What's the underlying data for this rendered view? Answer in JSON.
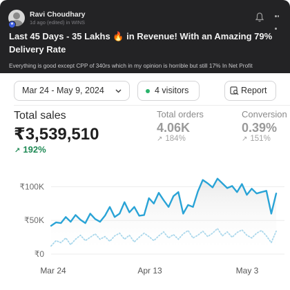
{
  "post": {
    "author": "Ravi Choudhary",
    "meta": "1d ago (edited) in WINS",
    "title_part1": "Last 45 Days - 35 Lakhs",
    "title_emoji": "🔥",
    "title_part2": "in Revenue! With an Amazing 79% Delivery Rate",
    "body": "Everything is good except CPP of 340rs which in my opinion is horrible but still 17% In Net Profit"
  },
  "dashboard": {
    "date_range": "Mar 24 - May 9, 2024",
    "visitors": "4 visitors",
    "report_label": "Report",
    "metrics": {
      "total_sales": {
        "label": "Total sales",
        "value": "₹3,539,510",
        "change": "192%"
      },
      "total_orders": {
        "label": "Total orders",
        "value": "4.06K",
        "change": "184%"
      },
      "conversion": {
        "label": "Conversion",
        "value": "0.39%",
        "change": "151%"
      }
    }
  },
  "colors": {
    "header_bg": "#232325",
    "primary_line": "#29a3d6",
    "compare_line": "#9fd3ea",
    "positive": "#1f8a55",
    "live_dot": "#29b36b"
  },
  "chart_data": {
    "type": "line",
    "x_tick_labels": [
      "Mar 24",
      "Apr 13",
      "May 3"
    ],
    "y_tick_labels": [
      "₹100K",
      "₹50K",
      "₹0"
    ],
    "ylim": [
      0,
      125000
    ],
    "series": [
      {
        "values": [
          42000,
          47000,
          46000,
          55000,
          48000,
          58000,
          51000,
          46000,
          60000,
          52000,
          48000,
          57000,
          70000,
          55000,
          60000,
          77000,
          62000,
          70000,
          57000,
          58000,
          83000,
          75000,
          91000,
          80000,
          70000,
          86000,
          92000,
          60000,
          73000,
          70000,
          93000,
          110000,
          105000,
          99000,
          112000,
          105000,
          98000,
          101000,
          92000,
          104000,
          88000,
          97000,
          90000,
          92000,
          94000,
          60000,
          90000
        ]
      },
      {
        "values": [
          12000,
          20000,
          17000,
          24000,
          14000,
          22000,
          28000,
          20000,
          25000,
          30000,
          22000,
          26000,
          19000,
          27000,
          31000,
          22000,
          28000,
          18000,
          25000,
          31000,
          26000,
          20000,
          27000,
          33000,
          24000,
          29000,
          22000,
          30000,
          35000,
          24000,
          28000,
          34000,
          26000,
          31000,
          38000,
          27000,
          33000,
          25000,
          32000,
          36000,
          28000,
          24000,
          31000,
          35000,
          27000,
          17000,
          34000
        ]
      }
    ]
  }
}
